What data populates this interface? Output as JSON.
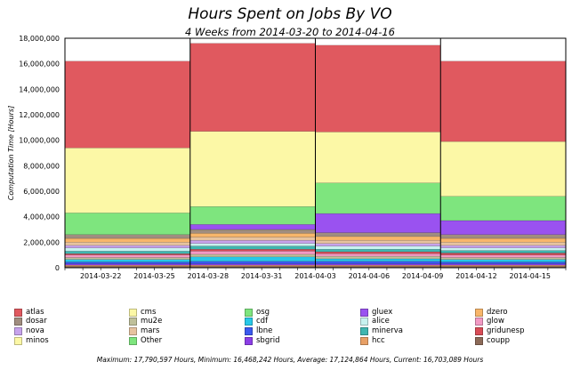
{
  "chart_data": {
    "type": "bar",
    "title": "Hours Spent on Jobs By VO",
    "subtitle": "4 Weeks from 2014-03-20 to 2014-04-16",
    "ylabel": "Computation Time [Hours]",
    "xlabel": "",
    "ylim": [
      0,
      18000000
    ],
    "yticks": [
      "0",
      "2,000,000",
      "4,000,000",
      "6,000,000",
      "8,000,000",
      "10,000,000",
      "12,000,000",
      "14,000,000",
      "16,000,000",
      "18,000,000"
    ],
    "x_tick_labels": [
      "2014-03-22",
      "2014-03-25",
      "2014-03-28",
      "2014-03-31",
      "2014-04-03",
      "2014-04-06",
      "2014-04-09",
      "2014-04-12",
      "2014-04-15"
    ],
    "weeks": [
      {
        "start": "2014-03-20",
        "end": "2014-03-27"
      },
      {
        "start": "2014-03-27",
        "end": "2014-04-03"
      },
      {
        "start": "2014-04-03",
        "end": "2014-04-10"
      },
      {
        "start": "2014-04-10",
        "end": "2014-04-17"
      }
    ],
    "stack_order_bottom_to_top": [
      "coupp",
      "hcc",
      "sbgrid",
      "lbne",
      "cdf",
      "mu2e",
      "glow",
      "gridunesp",
      "minerva",
      "alice",
      "nova",
      "mars",
      "dzero",
      "dosar",
      "gluex",
      "osg",
      "cms",
      "atlas"
    ],
    "series": [
      {
        "name": "atlas",
        "color": "#e0595f",
        "values": [
          6800000,
          6900000,
          6800000,
          6300000
        ]
      },
      {
        "name": "cms",
        "color": "#fcf8a6",
        "values": [
          5100000,
          5900000,
          4000000,
          4300000
        ]
      },
      {
        "name": "osg",
        "color": "#7ee57e",
        "values": [
          1700000,
          1400000,
          2400000,
          1900000
        ]
      },
      {
        "name": "gluex",
        "color": "#9a52f0",
        "values": [
          0,
          400000,
          1500000,
          1100000
        ]
      },
      {
        "name": "dosar",
        "color": "#a08d7f",
        "values": [
          300000,
          300000,
          300000,
          300000
        ]
      },
      {
        "name": "dzero",
        "color": "#f8b66a",
        "values": [
          300000,
          300000,
          300000,
          300000
        ]
      },
      {
        "name": "mars",
        "color": "#e7c3a0",
        "values": [
          250000,
          250000,
          250000,
          250000
        ]
      },
      {
        "name": "nova",
        "color": "#c7a3ec",
        "values": [
          200000,
          250000,
          200000,
          200000
        ]
      },
      {
        "name": "alice",
        "color": "#c8f2ef",
        "values": [
          250000,
          200000,
          250000,
          200000
        ]
      },
      {
        "name": "minerva",
        "color": "#3fb6b0",
        "values": [
          200000,
          250000,
          200000,
          200000
        ]
      },
      {
        "name": "gridunesp",
        "color": "#d94c56",
        "values": [
          100000,
          150000,
          150000,
          150000
        ]
      },
      {
        "name": "glow",
        "color": "#f29ac4",
        "values": [
          200000,
          250000,
          200000,
          200000
        ]
      },
      {
        "name": "mu2e",
        "color": "#bfc09a",
        "values": [
          150000,
          200000,
          200000,
          150000
        ]
      },
      {
        "name": "cdf",
        "color": "#27c8e8",
        "values": [
          200000,
          350000,
          200000,
          200000
        ]
      },
      {
        "name": "lbne",
        "color": "#3b59ef",
        "values": [
          150000,
          200000,
          200000,
          150000
        ]
      },
      {
        "name": "sbgrid",
        "color": "#8c3ee6",
        "values": [
          100000,
          100000,
          100000,
          100000
        ]
      },
      {
        "name": "hcc",
        "color": "#e8a066",
        "values": [
          100000,
          100000,
          100000,
          100000
        ]
      },
      {
        "name": "coupp",
        "color": "#8c6a58",
        "values": [
          100000,
          100000,
          100000,
          100000
        ]
      }
    ]
  },
  "legend": [
    {
      "name": "atlas",
      "color": "#e0595f"
    },
    {
      "name": "cms",
      "color": "#fcf8a6"
    },
    {
      "name": "osg",
      "color": "#7ee57e"
    },
    {
      "name": "gluex",
      "color": "#9a52f0"
    },
    {
      "name": "dzero",
      "color": "#f8b66a"
    },
    {
      "name": "dosar",
      "color": "#a08d7f"
    },
    {
      "name": "mu2e",
      "color": "#bfc09a"
    },
    {
      "name": "cdf",
      "color": "#27c8e8"
    },
    {
      "name": "alice",
      "color": "#c8f2ef"
    },
    {
      "name": "glow",
      "color": "#f29ac4"
    },
    {
      "name": "nova",
      "color": "#c7a3ec"
    },
    {
      "name": "mars",
      "color": "#e7c3a0"
    },
    {
      "name": "lbne",
      "color": "#3b59ef"
    },
    {
      "name": "minerva",
      "color": "#3fb6b0"
    },
    {
      "name": "gridunesp",
      "color": "#d94c56"
    },
    {
      "name": "minos",
      "color": "#fcf8a6"
    },
    {
      "name": "Other",
      "color": "#7ee57e"
    },
    {
      "name": "sbgrid",
      "color": "#8c3ee6"
    },
    {
      "name": "hcc",
      "color": "#e8a066"
    },
    {
      "name": "coupp",
      "color": "#8c6a58"
    }
  ],
  "footer": {
    "stats": "Maximum: 17,790,597 Hours, Minimum: 16,468,242 Hours, Average: 17,124,864 Hours, Current: 16,703,089 Hours"
  }
}
